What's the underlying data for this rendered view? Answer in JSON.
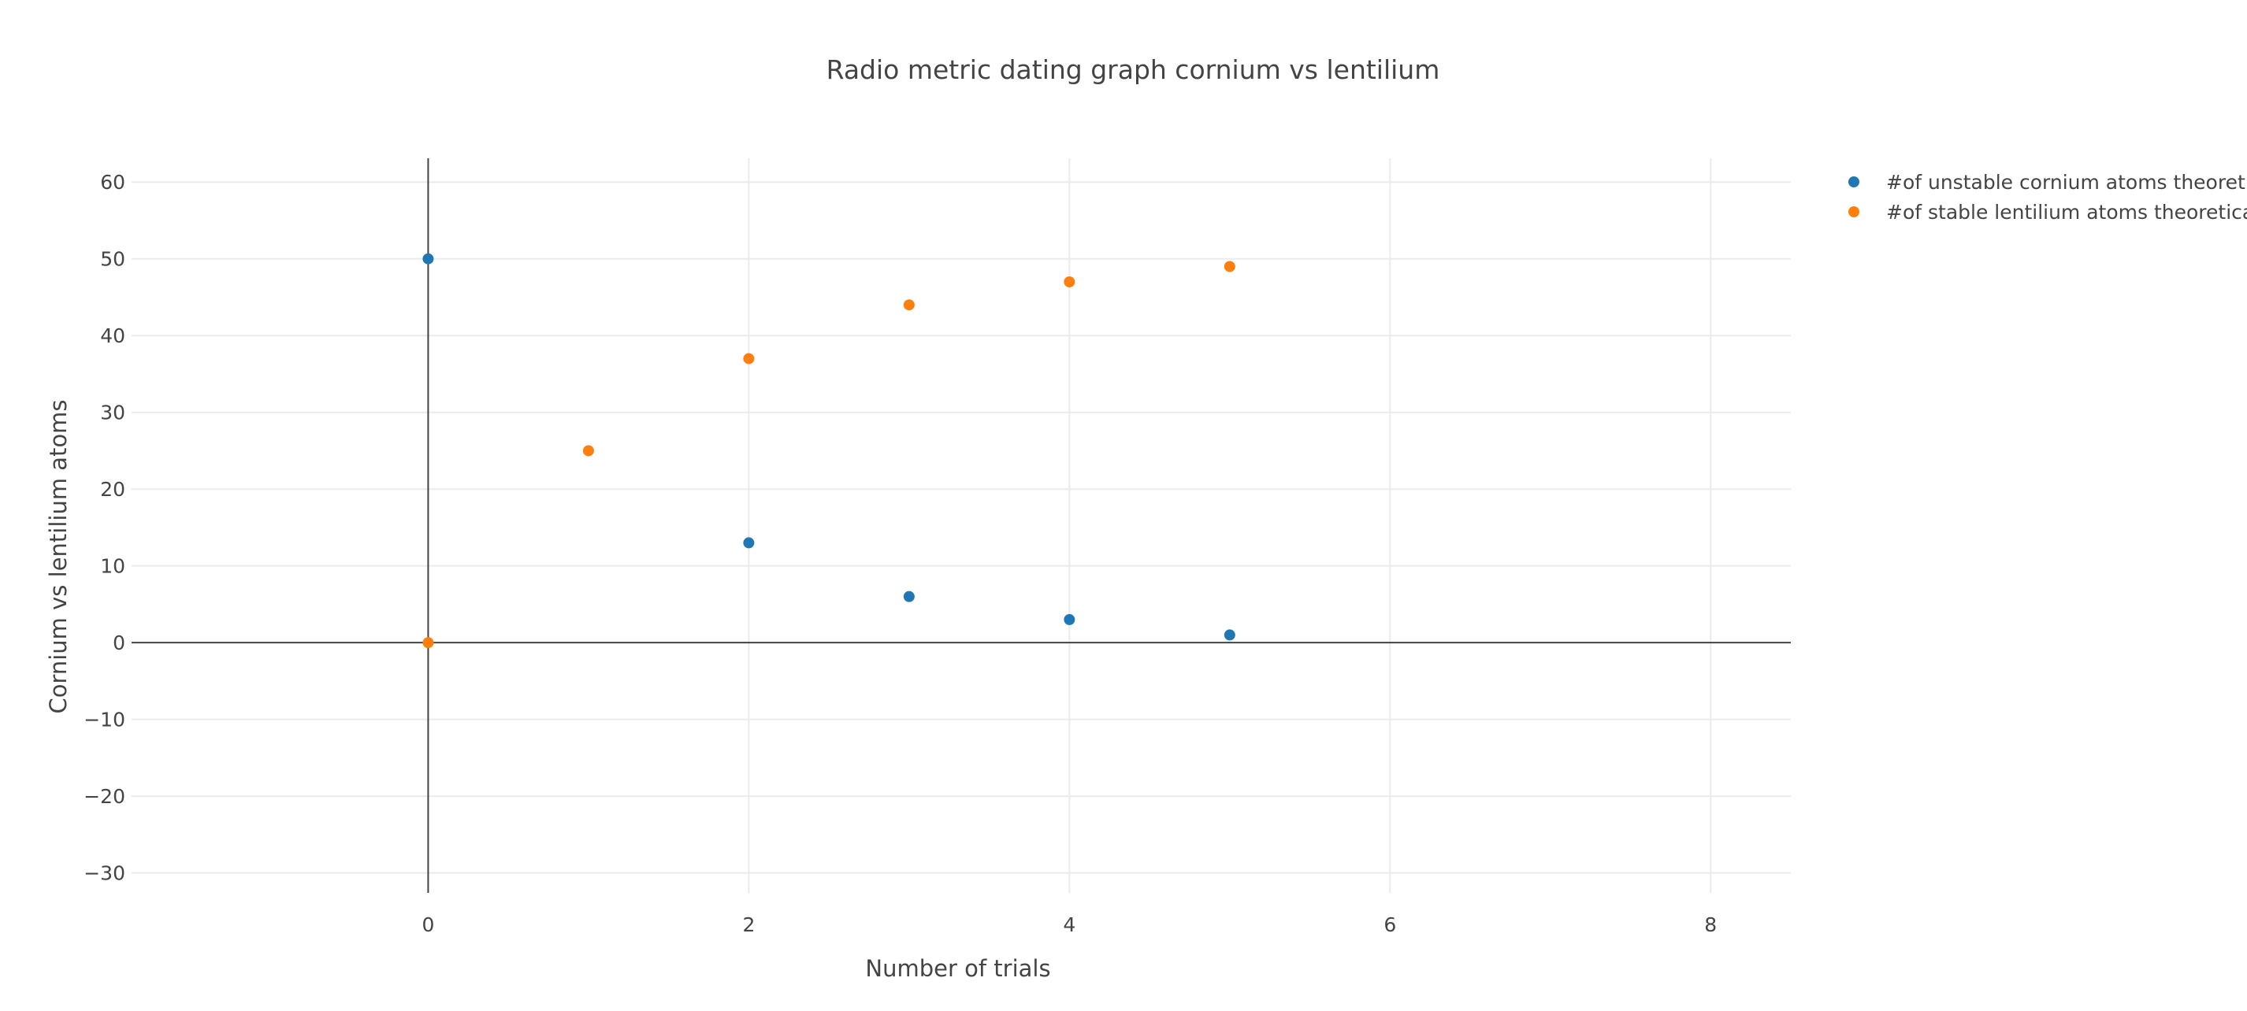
{
  "chart_data": {
    "type": "scatter",
    "title": "Radio metric dating graph cornium vs lentilium",
    "xlabel": "Number of trials",
    "ylabel": "Cornium vs lentilium atoms",
    "xlim": [
      -1.85,
      8.5
    ],
    "ylim": [
      -32.6,
      63.1
    ],
    "x_ticks": [
      0,
      2,
      4,
      6,
      8
    ],
    "x_tick_labels": [
      "0",
      "2",
      "4",
      "6",
      "8"
    ],
    "y_ticks": [
      -30,
      -20,
      -10,
      0,
      10,
      20,
      30,
      40,
      50,
      60
    ],
    "y_tick_labels": [
      "−30",
      "−20",
      "−10",
      "0",
      "10",
      "20",
      "30",
      "40",
      "50",
      "60"
    ],
    "grid": true,
    "zero_lines": true,
    "legend_position": "top-right",
    "series": [
      {
        "name": "#of unstable cornium atoms theoretic",
        "color": "#1f77b4",
        "points": [
          {
            "x": 0,
            "y": 50
          },
          {
            "x": 2,
            "y": 13
          },
          {
            "x": 3,
            "y": 6
          },
          {
            "x": 4,
            "y": 3
          },
          {
            "x": 5,
            "y": 1
          }
        ]
      },
      {
        "name": "#of stable lentilium atoms theoretical",
        "color": "#ff7f0e",
        "points": [
          {
            "x": 0,
            "y": 0
          },
          {
            "x": 1,
            "y": 25
          },
          {
            "x": 2,
            "y": 37
          },
          {
            "x": 3,
            "y": 44
          },
          {
            "x": 4,
            "y": 47
          },
          {
            "x": 5,
            "y": 49
          }
        ]
      }
    ]
  }
}
